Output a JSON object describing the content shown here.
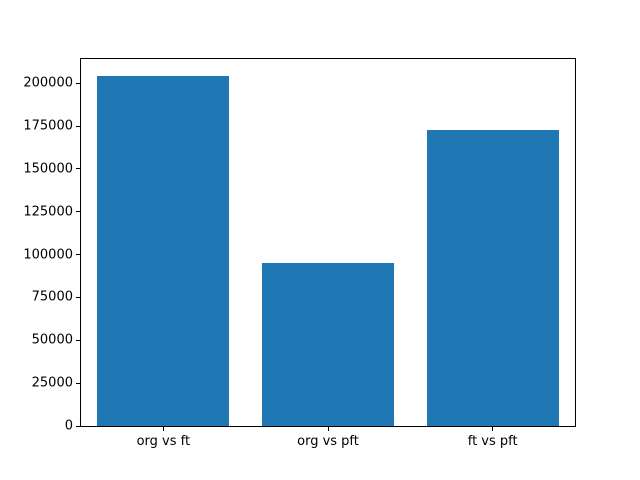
{
  "chart_data": {
    "type": "bar",
    "categories": [
      "org vs ft",
      "org vs pft",
      "ft vs pft"
    ],
    "values": [
      204000,
      95000,
      173000
    ],
    "title": "",
    "xlabel": "",
    "ylabel": "",
    "ylim": [
      0,
      214200
    ],
    "yticks": [
      0,
      25000,
      50000,
      75000,
      100000,
      125000,
      150000,
      175000,
      200000
    ],
    "bar_color": "#1f77b4",
    "axis_color": "#000000",
    "background_color": "#ffffff",
    "bar_width_fraction": 0.8,
    "grid": false,
    "legend": null
  }
}
